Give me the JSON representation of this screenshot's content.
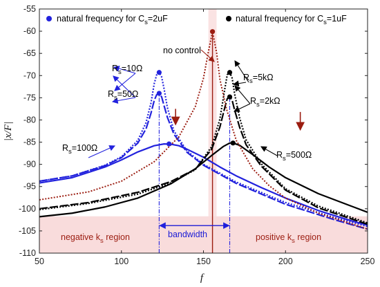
{
  "colors": {
    "blue": "#2222dd",
    "black": "#000000",
    "red": "#9b1c10",
    "region": "#f9dcdc",
    "region_text": "#9b1c10",
    "bandwidth": "#1a1ad6"
  },
  "chart_data": {
    "type": "line",
    "xlabel": "f",
    "ylabel": "|x/F|",
    "xlim": [
      50,
      250
    ],
    "ylim": [
      -110,
      -55
    ],
    "xticks": [
      50,
      100,
      150,
      200,
      250
    ],
    "yticks": [
      -110,
      -105,
      -100,
      -95,
      -90,
      -85,
      -80,
      -75,
      -70,
      -65,
      -60,
      -55
    ],
    "grid": false,
    "legend": {
      "blue": "natural frequency for C",
      "blue_sub": "s",
      "blue_val": "=2uF",
      "black": "natural frequency for C",
      "black_sub": "s",
      "black_val": "=1uF"
    },
    "series": [
      {
        "color": "blue",
        "style": "dotted",
        "width": 2.2,
        "x": [
          50,
          70,
          90,
          100,
          110,
          115,
          118,
          120,
          121.5,
          123,
          124.5,
          126,
          128,
          132,
          140,
          150,
          170,
          200,
          230,
          250
        ],
        "y": [
          -93.8,
          -92.6,
          -90.2,
          -88.3,
          -84.6,
          -80.6,
          -76.2,
          -71.8,
          -69.8,
          -69.3,
          -70.3,
          -73.0,
          -77.2,
          -82.5,
          -87.0,
          -90.0,
          -94.0,
          -98.6,
          -102.0,
          -104.0
        ]
      },
      {
        "color": "blue",
        "style": "dashed",
        "width": 2.2,
        "x": [
          50,
          70,
          90,
          100,
          110,
          115,
          118,
          120,
          121.5,
          123,
          124.5,
          126,
          128,
          132,
          140,
          150,
          170,
          200,
          230,
          250
        ],
        "y": [
          -93.8,
          -92.6,
          -90.3,
          -88.5,
          -85.2,
          -82.0,
          -78.5,
          -75.6,
          -74.3,
          -74.0,
          -74.8,
          -76.8,
          -79.4,
          -83.2,
          -87.3,
          -90.2,
          -94.3,
          -99.0,
          -102.5,
          -104.6
        ]
      },
      {
        "color": "blue",
        "style": "solid",
        "width": 2.2,
        "x": [
          50,
          70,
          90,
          100,
          110,
          120,
          126,
          130,
          135,
          140,
          150,
          160,
          170,
          185,
          200,
          220,
          240,
          250
        ],
        "y": [
          -94.2,
          -93.0,
          -90.6,
          -89.0,
          -87.2,
          -85.8,
          -85.4,
          -85.45,
          -85.8,
          -86.6,
          -88.4,
          -90.6,
          -92.6,
          -95.2,
          -97.6,
          -100.4,
          -102.7,
          -103.7
        ]
      },
      {
        "color": "black",
        "style": "dotted",
        "width": 2.2,
        "x": [
          50,
          80,
          110,
          130,
          145,
          155,
          160,
          163,
          164.5,
          166,
          167.5,
          169,
          172,
          176,
          185,
          200,
          220,
          250
        ],
        "y": [
          -100.2,
          -98.8,
          -96.7,
          -94.2,
          -91.2,
          -86.0,
          -79.8,
          -73.0,
          -69.8,
          -69.3,
          -70.6,
          -74.2,
          -79.5,
          -84.5,
          -89.8,
          -95.5,
          -99.4,
          -103.2
        ]
      },
      {
        "color": "black",
        "style": "dashed",
        "width": 2.2,
        "x": [
          50,
          80,
          110,
          130,
          145,
          155,
          160,
          163,
          164.5,
          166,
          167.5,
          169,
          172,
          176,
          185,
          200,
          220,
          250
        ],
        "y": [
          -100.0,
          -98.6,
          -96.3,
          -93.9,
          -91.1,
          -86.6,
          -81.6,
          -77.2,
          -75.2,
          -74.8,
          -75.6,
          -77.8,
          -81.6,
          -85.6,
          -90.3,
          -95.8,
          -99.8,
          -103.5
        ]
      },
      {
        "color": "black",
        "style": "solid",
        "width": 2.2,
        "x": [
          50,
          70,
          90,
          110,
          130,
          145,
          155,
          162,
          166,
          168,
          172,
          180,
          190,
          200,
          220,
          240,
          250
        ],
        "y": [
          -101.8,
          -101.0,
          -99.6,
          -97.6,
          -94.4,
          -91.0,
          -88.0,
          -86.0,
          -85.2,
          -85.2,
          -85.7,
          -87.8,
          -90.6,
          -93.0,
          -96.6,
          -99.4,
          -100.8
        ]
      },
      {
        "color": "red",
        "style": "dotted",
        "width": 2.0,
        "x": [
          50,
          80,
          100,
          120,
          135,
          145,
          150,
          153,
          155.5,
          158,
          160,
          164,
          170,
          180,
          190,
          200,
          220,
          250
        ],
        "y": [
          -98.0,
          -96.2,
          -93.8,
          -89.4,
          -83.8,
          -77.0,
          -70.6,
          -64.6,
          -60.1,
          -64.8,
          -70.8,
          -77.5,
          -84.6,
          -91.0,
          -94.8,
          -97.6,
          -101.0,
          -104.6
        ]
      }
    ],
    "peaks": [
      {
        "color": "blue",
        "x": 123,
        "y": -69.3
      },
      {
        "color": "blue",
        "x": 123,
        "y": -74.0
      },
      {
        "color": "blue",
        "x": 129,
        "y": -85.4
      },
      {
        "color": "black",
        "x": 166,
        "y": -69.3
      },
      {
        "color": "black",
        "x": 166,
        "y": -74.8
      },
      {
        "color": "black",
        "x": 168,
        "y": -85.2
      },
      {
        "color": "red",
        "x": 155.5,
        "y": -60.1
      }
    ],
    "vlines": [
      {
        "color": "blue",
        "x": 123,
        "y_from": -110,
        "y_to": -74.0
      },
      {
        "color": "blue",
        "x": 166,
        "y_from": -110,
        "y_to": -74.8
      },
      {
        "color": "red",
        "x": 155.5,
        "y_from": -110,
        "y_to": -60.1
      }
    ],
    "bandwidth": {
      "x1": 123,
      "x2": 166,
      "y": -103.8,
      "label": "bandwidth"
    },
    "regions": {
      "negative": {
        "x_to": 155.5,
        "label_pre": "negative k",
        "label_sub": "s",
        "label_post": " region"
      },
      "positive": {
        "x_from": 155.5,
        "label_pre": "positive k",
        "label_sub": "s",
        "label_post": " region"
      }
    },
    "annotations": [
      {
        "key": "rs10",
        "color": "blue",
        "pre": "R",
        "sub": "s",
        "post": "=10Ω"
      },
      {
        "key": "rs50",
        "color": "blue",
        "pre": "R",
        "sub": "s",
        "post": "=50Ω"
      },
      {
        "key": "rs100",
        "color": "blue",
        "pre": "R",
        "sub": "s",
        "post": "=100Ω"
      },
      {
        "key": "rs5k",
        "color": "black",
        "pre": "R",
        "sub": "s",
        "post": "=5kΩ"
      },
      {
        "key": "rs2k",
        "color": "black",
        "pre": "R",
        "sub": "s",
        "post": "=2kΩ"
      },
      {
        "key": "rs500",
        "color": "black",
        "pre": "R",
        "sub": "s",
        "post": "=500Ω"
      },
      {
        "key": "nocontrol",
        "color": "red",
        "pre": "no control",
        "sub": "",
        "post": ""
      }
    ],
    "arrows_down": [
      {
        "x": 133,
        "y_from": -77.5,
        "y_to": -81.0
      },
      {
        "x": 209,
        "y_from": -78.2,
        "y_to": -82.2
      }
    ]
  }
}
